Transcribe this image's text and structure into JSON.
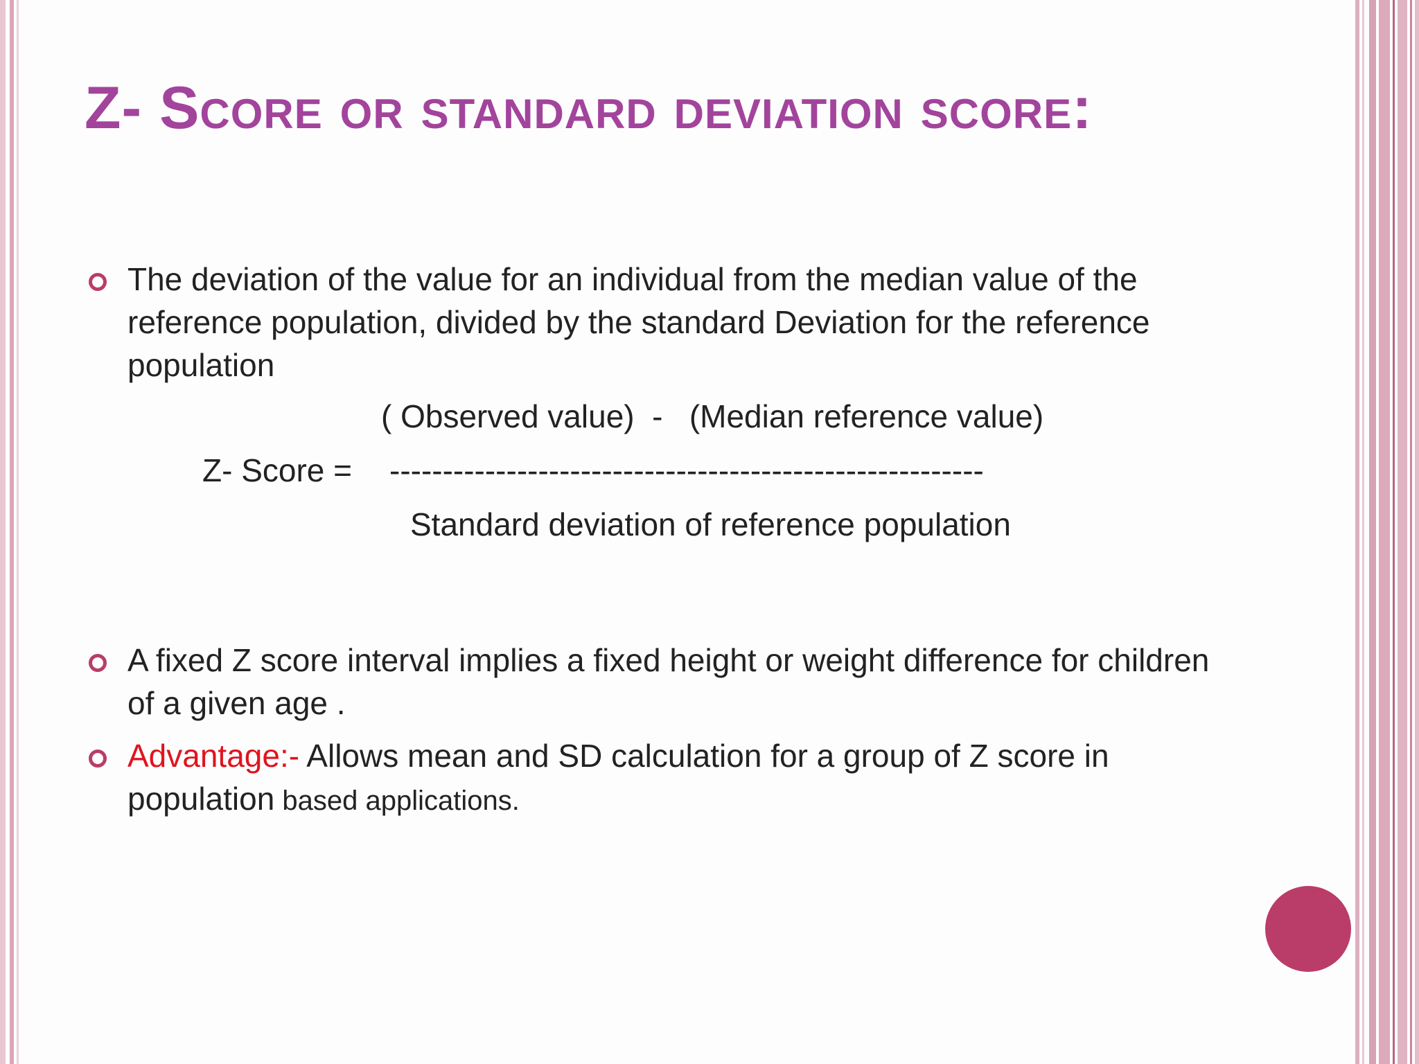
{
  "slide": {
    "title": "Z- Score or standard deviation score:",
    "bullets": {
      "b1": "The deviation of the value for an individual from the median value of the reference population, divided by the standard Deviation for the reference population",
      "b2": " A fixed Z score interval implies a fixed height or weight difference for children of a given age .",
      "b3_label": "Advantage:-",
      "b3_text": " Allows mean and SD calculation for a group of Z score in population",
      "b3_small": " based applications."
    },
    "formula": {
      "numerator": "( Observed value)  -   (Median reference value)",
      "lhs": "Z- Score =",
      "divider": "--------------------------------------------------------",
      "denominator": "Standard deviation of reference population"
    }
  },
  "colors": {
    "title": "#a2449c",
    "accent": "#b93d68",
    "advantage": "#e0141e",
    "text": "#222222"
  }
}
